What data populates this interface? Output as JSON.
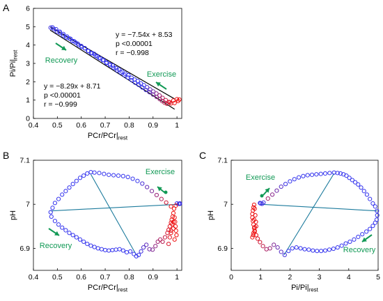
{
  "figure": {
    "colors": {
      "early_marker": "#3333ee",
      "late_marker": "#ee1111",
      "fit_line": "#000000",
      "chord_line": "#1b7a9c",
      "annotation": "#119955"
    }
  },
  "chart_data": [
    {
      "panel_label": "A",
      "type": "scatter",
      "xlabel": "PCr/PCr|rest",
      "ylabel": "Pi/Pi|rest",
      "xlim": [
        0.4,
        1.02
      ],
      "ylim": [
        0,
        6
      ],
      "xticks": [
        "0.4",
        "0.5",
        "0.6",
        "0.7",
        "0.8",
        "0.9",
        "1"
      ],
      "yticks": [
        "0",
        "1",
        "2",
        "3",
        "4",
        "5",
        "6"
      ],
      "grid": false,
      "series": [
        {
          "x": [
            0.472,
            0.485,
            0.498,
            0.511,
            0.524,
            0.537,
            0.55,
            0.563,
            0.576,
            0.589,
            0.602,
            0.615,
            0.628,
            0.641,
            0.654,
            0.667,
            0.68,
            0.693,
            0.706,
            0.719,
            0.732,
            0.745,
            0.758,
            0.771,
            0.784,
            0.797,
            0.81,
            0.823,
            0.836,
            0.849,
            0.862,
            0.875,
            0.888,
            0.901,
            0.914,
            0.927,
            0.94,
            0.953,
            0.966,
            0.975,
            0.99,
            1.005,
            1.01,
            1.0,
            0.985,
            0.97,
            0.958,
            0.948,
            0.938,
            0.928,
            0.915,
            0.9,
            0.885,
            0.87,
            0.855,
            0.84,
            0.825,
            0.81,
            0.795,
            0.78,
            0.765,
            0.75,
            0.735,
            0.72,
            0.705,
            0.69,
            0.675,
            0.66,
            0.645,
            0.63,
            0.615,
            0.6,
            0.585,
            0.57,
            0.555,
            0.54,
            0.525,
            0.51,
            0.495,
            0.48
          ],
          "y": [
            4.95,
            4.87,
            4.74,
            4.66,
            4.52,
            4.41,
            4.36,
            4.22,
            4.14,
            4.0,
            3.89,
            3.83,
            3.68,
            3.56,
            3.52,
            3.38,
            3.28,
            3.18,
            3.05,
            2.96,
            2.88,
            2.74,
            2.67,
            2.55,
            2.44,
            2.36,
            2.22,
            2.12,
            2.04,
            1.91,
            1.81,
            1.7,
            1.58,
            1.47,
            1.36,
            1.25,
            1.12,
            1.0,
            0.9,
            0.82,
            0.84,
            0.95,
            1.03,
            1.05,
            0.98,
            0.88,
            0.8,
            0.86,
            0.95,
            1.05,
            1.17,
            1.3,
            1.43,
            1.55,
            1.69,
            1.83,
            1.95,
            2.09,
            2.23,
            2.36,
            2.5,
            2.62,
            2.76,
            2.9,
            3.02,
            3.17,
            3.29,
            3.42,
            3.56,
            3.68,
            3.82,
            3.95,
            4.08,
            4.21,
            4.34,
            4.47,
            4.6,
            4.73,
            4.86,
            4.96
          ]
        }
      ],
      "fits": [
        {
          "slope": -7.54,
          "intercept": 8.53,
          "x_range": [
            0.47,
            0.99
          ]
        },
        {
          "slope": -8.29,
          "intercept": 8.71,
          "x_range": [
            0.47,
            0.99
          ]
        }
      ],
      "annotations": {
        "fit1": [
          "y = −7.54x + 8.53",
          "p <0.00001",
          "r = −0.998"
        ],
        "fit2": [
          "y = −8.29x + 8.71",
          "p <0.00001",
          "r = −0.999"
        ],
        "recovery": "Recovery",
        "exercise": "Exercise"
      }
    },
    {
      "panel_label": "B",
      "type": "scatter",
      "xlabel": "PCr/PCr|rest",
      "ylabel": "pH",
      "xlim": [
        0.4,
        1.02
      ],
      "ylim": [
        6.85,
        7.1
      ],
      "xticks": [
        "0.4",
        "0.5",
        "0.6",
        "0.7",
        "0.8",
        "0.9",
        "1"
      ],
      "yticks": [
        "6.9",
        "7",
        "7.1"
      ],
      "grid": false,
      "series": [
        {
          "x": [
            1.0,
            1.008,
            1.012,
            1.012,
            0.995,
            0.975,
            0.955,
            0.935,
            0.915,
            0.895,
            0.875,
            0.855,
            0.835,
            0.815,
            0.795,
            0.775,
            0.755,
            0.735,
            0.715,
            0.695,
            0.675,
            0.655,
            0.64,
            0.625,
            0.61,
            0.595,
            0.58,
            0.565,
            0.55,
            0.535,
            0.52,
            0.505,
            0.49,
            0.48,
            0.472,
            0.475,
            0.49,
            0.505,
            0.52,
            0.535,
            0.55,
            0.565,
            0.58,
            0.595,
            0.61,
            0.625,
            0.64,
            0.655,
            0.67,
            0.685,
            0.7,
            0.715,
            0.73,
            0.745,
            0.76,
            0.775,
            0.79,
            0.805,
            0.82,
            0.83,
            0.84,
            0.85,
            0.86,
            0.872,
            0.885,
            0.898,
            0.91,
            0.92,
            0.93,
            0.94,
            0.95,
            0.96,
            0.965,
            0.97,
            0.975,
            0.978,
            0.982,
            0.985,
            0.988,
            0.99,
            0.992,
            0.994,
            0.996,
            0.998,
            0.99,
            0.985,
            0.98,
            0.975,
            0.97,
            0.965,
            0.975,
            0.985
          ],
          "y": [
            7.002,
            7.001,
            7.002,
            7.001,
            6.997,
            6.995,
            7.004,
            7.012,
            7.021,
            7.03,
            7.039,
            7.047,
            7.053,
            7.058,
            7.062,
            7.064,
            7.065,
            7.066,
            7.067,
            7.069,
            7.071,
            7.072,
            7.073,
            7.07,
            7.065,
            7.06,
            7.053,
            7.046,
            7.038,
            7.03,
            7.022,
            7.012,
            7.003,
            6.992,
            6.982,
            6.972,
            6.962,
            6.954,
            6.947,
            6.941,
            6.935,
            6.93,
            6.925,
            6.92,
            6.915,
            6.91,
            6.906,
            6.903,
            6.9,
            6.898,
            6.896,
            6.895,
            6.896,
            6.897,
            6.898,
            6.895,
            6.891,
            6.893,
            6.887,
            6.882,
            6.885,
            6.893,
            6.902,
            6.908,
            6.898,
            6.897,
            6.905,
            6.915,
            6.92,
            6.915,
            6.925,
            6.935,
            6.942,
            6.95,
            6.958,
            6.965,
            6.972,
            6.98,
            6.99,
            6.97,
            6.96,
            6.95,
            6.94,
            6.93,
            6.92,
            6.945,
            6.955,
            6.935,
            6.925,
            6.91,
            6.94,
            6.96
          ]
        }
      ],
      "chords": [
        {
          "from": [
            0.472,
            6.985
          ],
          "to": [
            1.01,
            7.0
          ]
        },
        {
          "from": [
            0.64,
            7.068
          ],
          "to": [
            0.83,
            6.885
          ]
        }
      ],
      "annotations": {
        "recovery": "Recovery",
        "exercise": "Exercise"
      }
    },
    {
      "panel_label": "C",
      "type": "scatter",
      "xlabel": "Pi/Pi|rest",
      "ylabel": "pH",
      "xlim": [
        0,
        5
      ],
      "ylim": [
        6.85,
        7.1
      ],
      "xticks": [
        "0",
        "1",
        "2",
        "3",
        "4",
        "5"
      ],
      "yticks": [
        "6.9",
        "7",
        "7.1"
      ],
      "grid": false,
      "series": [
        {
          "x": [
            1.0,
            1.05,
            0.98,
            1.1,
            1.25,
            1.4,
            1.55,
            1.7,
            1.85,
            2.0,
            2.15,
            2.3,
            2.45,
            2.6,
            2.75,
            2.9,
            3.05,
            3.2,
            3.35,
            3.5,
            3.62,
            3.72,
            3.82,
            3.92,
            4.02,
            4.12,
            4.22,
            4.32,
            4.42,
            4.52,
            4.62,
            4.72,
            4.82,
            4.9,
            4.96,
            4.97,
            4.95,
            4.9,
            4.82,
            4.72,
            4.6,
            4.46,
            4.32,
            4.18,
            4.04,
            3.9,
            3.76,
            3.62,
            3.48,
            3.34,
            3.2,
            3.06,
            2.92,
            2.78,
            2.64,
            2.5,
            2.36,
            2.22,
            2.08,
            1.95,
            1.82,
            1.7,
            1.58,
            1.45,
            1.32,
            1.2,
            1.08,
            0.98,
            0.9,
            0.85,
            0.8,
            0.78,
            0.76,
            0.74,
            0.72,
            0.72,
            0.74,
            0.76,
            0.78,
            0.8,
            0.82,
            0.84,
            0.8,
            0.76,
            0.72,
            0.75,
            0.8,
            0.85,
            0.78
          ],
          "y": [
            7.002,
            7.001,
            7.003,
            7.004,
            7.013,
            7.022,
            7.031,
            7.04,
            7.046,
            7.052,
            7.057,
            7.061,
            7.064,
            7.066,
            7.067,
            7.068,
            7.069,
            7.07,
            7.071,
            7.072,
            7.071,
            7.07,
            7.068,
            7.065,
            7.06,
            7.055,
            7.05,
            7.045,
            7.038,
            7.03,
            7.022,
            7.012,
            7.002,
            6.995,
            6.985,
            6.975,
            6.965,
            6.958,
            6.951,
            6.944,
            6.938,
            6.932,
            6.926,
            6.92,
            6.915,
            6.911,
            6.906,
            6.902,
            6.899,
            6.897,
            6.895,
            6.894,
            6.894,
            6.895,
            6.897,
            6.898,
            6.9,
            6.902,
            6.9,
            6.894,
            6.885,
            6.892,
            6.902,
            6.908,
            6.9,
            6.898,
            6.905,
            6.914,
            6.922,
            6.93,
            6.938,
            6.946,
            6.954,
            6.962,
            6.97,
            6.978,
            6.986,
            6.993,
            6.999,
            6.99,
            6.975,
            6.96,
            6.948,
            6.935,
            6.925,
            6.93,
            6.94,
            6.95,
            6.965
          ]
        }
      ],
      "chords": [
        {
          "from": [
            1.0,
            7.0
          ],
          "to": [
            4.97,
            6.985
          ]
        },
        {
          "from": [
            3.5,
            7.07
          ],
          "to": [
            1.8,
            6.885
          ]
        }
      ],
      "annotations": {
        "recovery": "Recovery",
        "exercise": "Exercise"
      }
    }
  ]
}
